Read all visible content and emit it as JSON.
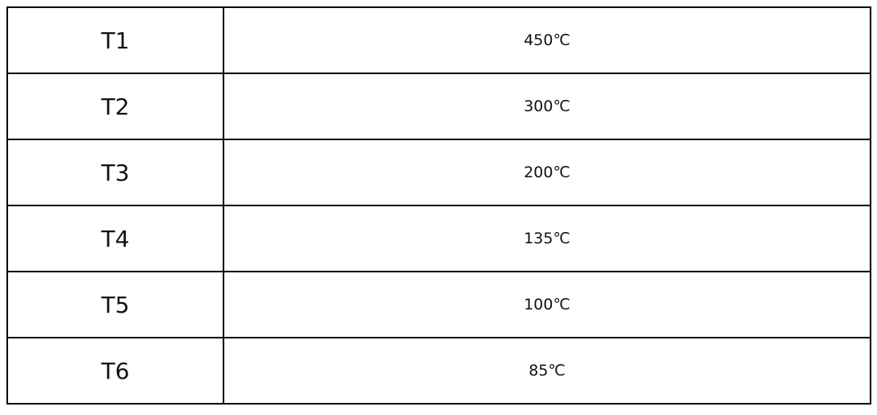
{
  "table": {
    "rows": [
      {
        "label": "T1",
        "value": "450℃"
      },
      {
        "label": "T2",
        "value": "300℃"
      },
      {
        "label": "T3",
        "value": "200℃"
      },
      {
        "label": "T4",
        "value": "135℃"
      },
      {
        "label": "T5",
        "value": "100℃"
      },
      {
        "label": "T6",
        "value": "85℃"
      }
    ]
  }
}
